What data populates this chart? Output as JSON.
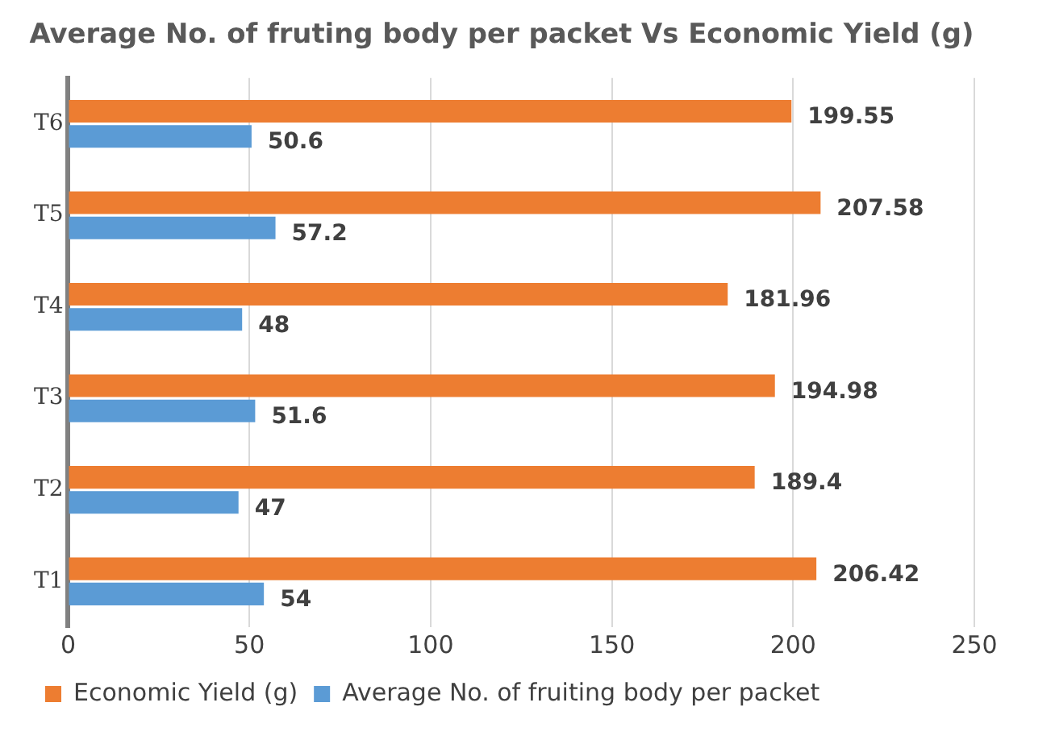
{
  "chart_data": {
    "type": "bar",
    "orientation": "horizontal",
    "title": "Average No. of fruting body per packet Vs Economic Yield (g)",
    "categories": [
      "T6",
      "T5",
      "T4",
      "T3",
      "T2",
      "T1"
    ],
    "series": [
      {
        "name": "Economic Yield (g)",
        "color": "#ed7d31",
        "values": [
          199.55,
          207.58,
          181.96,
          194.98,
          189.4,
          206.42
        ]
      },
      {
        "name": "Average No. of fruiting body per packet",
        "color": "#5b9bd5",
        "values": [
          50.6,
          57.2,
          48,
          51.6,
          47,
          54
        ]
      }
    ],
    "xlim": [
      0,
      250
    ],
    "xticks": [
      0,
      50,
      100,
      150,
      200,
      250
    ],
    "grid": "x",
    "legend": "bottom",
    "data_labels": true
  }
}
